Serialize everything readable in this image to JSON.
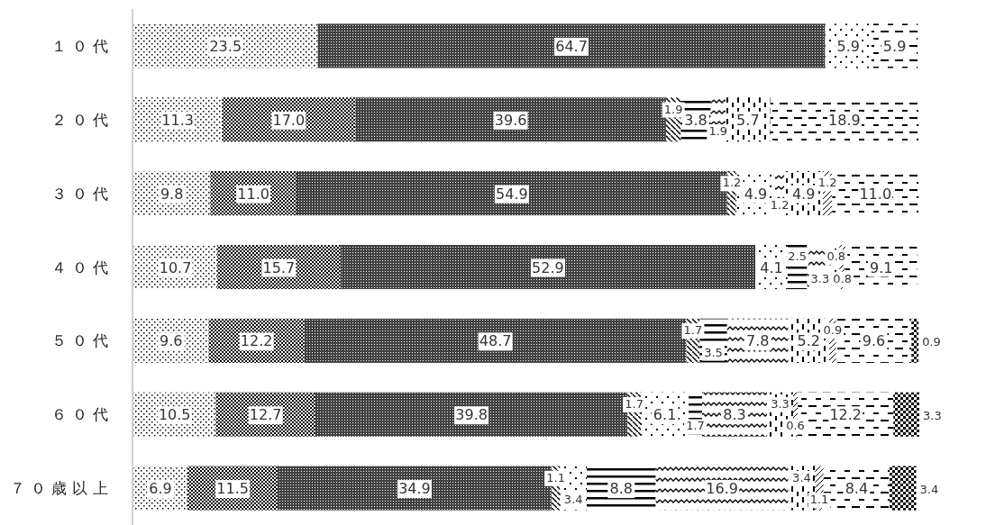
{
  "chart_data": {
    "type": "bar",
    "orientation": "horizontal",
    "stacked": true,
    "categories": [
      "１０代",
      "２０代",
      "３０代",
      "４０代",
      "５０代",
      "６０代",
      "７０歳以上"
    ],
    "series": [
      {
        "color": "#000000",
        "values": [
          23.5,
          11.3,
          9.8,
          10.7,
          9.6,
          10.5,
          6.9
        ],
        "value_labels": [
          "23.5",
          "11.3",
          "9.8",
          "10.7",
          "9.6",
          "10.5",
          "6.9"
        ]
      },
      {
        "color": "#000000",
        "values": [
          null,
          17.0,
          11.0,
          15.7,
          12.2,
          12.7,
          11.5
        ],
        "value_labels": [
          null,
          "17.0",
          "11.0",
          "15.7",
          "12.2",
          "12.7",
          "11.5"
        ]
      },
      {
        "color": "#000000",
        "values": [
          64.7,
          39.6,
          54.9,
          52.9,
          48.7,
          39.8,
          34.9
        ],
        "value_labels": [
          "64.7",
          "39.6",
          "54.9",
          "52.9",
          "48.7",
          "39.8",
          "34.9"
        ]
      },
      {
        "color": "#000000",
        "values": [
          null,
          1.9,
          1.2,
          null,
          1.7,
          1.7,
          1.1
        ],
        "value_labels": [
          null,
          "1.9",
          "1.2",
          null,
          "1.7",
          "1.7",
          "1.1"
        ]
      },
      {
        "color": "#000000",
        "values": [
          5.9,
          null,
          4.9,
          4.1,
          null,
          6.1,
          3.4
        ],
        "value_labels": [
          "5.9",
          null,
          "4.9",
          "4.1",
          null,
          "6.1",
          "3.4"
        ]
      },
      {
        "color": "#000000",
        "values": [
          null,
          3.8,
          null,
          2.5,
          3.5,
          1.7,
          8.8
        ],
        "value_labels": [
          null,
          "3.8",
          null,
          "2.5",
          "3.5",
          "1.7",
          "8.8"
        ]
      },
      {
        "color": "#000000",
        "values": [
          null,
          1.9,
          1.2,
          3.3,
          7.8,
          8.3,
          16.9
        ],
        "value_labels": [
          null,
          "1.9",
          "1.2",
          "3.3",
          "7.8",
          "8.3",
          "16.9"
        ]
      },
      {
        "color": "#000000",
        "values": [
          null,
          5.7,
          4.9,
          0.8,
          5.2,
          3.3,
          3.4
        ],
        "value_labels": [
          null,
          "5.7",
          "4.9",
          "0.8",
          "5.2",
          "3.3",
          "3.4"
        ]
      },
      {
        "color": "#000000",
        "values": [
          null,
          null,
          1.2,
          0.8,
          0.9,
          0.6,
          1.1
        ],
        "value_labels": [
          null,
          null,
          "1.2",
          "0.8",
          "0.9",
          "0.6",
          "1.1"
        ]
      },
      {
        "color": "#000000",
        "values": [
          5.9,
          18.9,
          11.0,
          9.1,
          9.6,
          12.2,
          8.4
        ],
        "value_labels": [
          "5.9",
          "18.9",
          "11.0",
          "9.1",
          "9.6",
          "12.2",
          "8.4"
        ]
      },
      {
        "color": "#000000",
        "values": [
          null,
          null,
          null,
          null,
          0.9,
          3.3,
          3.4
        ],
        "value_labels": [
          null,
          null,
          null,
          null,
          "0.9",
          "3.3",
          "3.4"
        ]
      }
    ]
  }
}
